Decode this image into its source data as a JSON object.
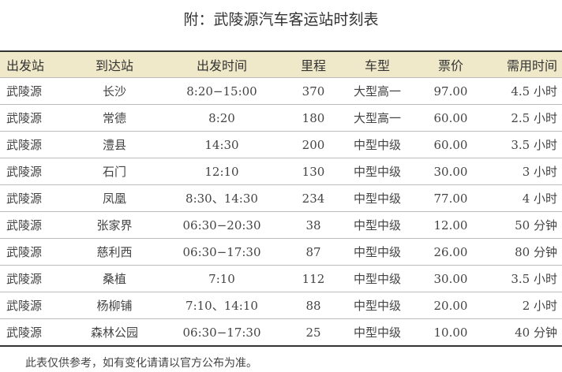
{
  "title": "附：武陵源汽车客运站时刻表",
  "headers": [
    "出发站",
    "到达站",
    "出发时间",
    "里程",
    "车型",
    "票价",
    "需用时间"
  ],
  "rows": [
    [
      "武陵源",
      "长沙",
      "8:20−15:00",
      "370",
      "大型高一",
      "97.00",
      "4.5 小时"
    ],
    [
      "武陵源",
      "常德",
      "8:20",
      "180",
      "大型高一",
      "60.00",
      "2.5 小时"
    ],
    [
      "武陵源",
      "澧县",
      "14:30",
      "200",
      "中型中级",
      "60.00",
      "3.5 小时"
    ],
    [
      "武陵源",
      "石门",
      "12:10",
      "130",
      "中型中级",
      "30.00",
      "3 小时"
    ],
    [
      "武陵源",
      "凤凰",
      "8:30、14:30",
      "234",
      "中型中级",
      "77.00",
      "4 小时"
    ],
    [
      "武陵源",
      "张家界",
      "06:30−20:30",
      "38",
      "中型中级",
      "12.00",
      "50 分钟"
    ],
    [
      "武陵源",
      "慈利西",
      "06:30−17:30",
      "87",
      "中型中级",
      "26.00",
      "80 分钟"
    ],
    [
      "武陵源",
      "桑植",
      "7:10",
      "112",
      "中型中级",
      "30.00",
      "3.5 小时"
    ],
    [
      "武陵源",
      "杨柳铺",
      "7:10、14:10",
      "88",
      "中型中级",
      "20.00",
      "2 小时"
    ],
    [
      "武陵源",
      "森林公园",
      "06:30−17:30",
      "25",
      "中型中级",
      "10.00",
      "40 分钟"
    ]
  ],
  "footer": "此表仅供参考，如有变化请请以官方公布为准。"
}
